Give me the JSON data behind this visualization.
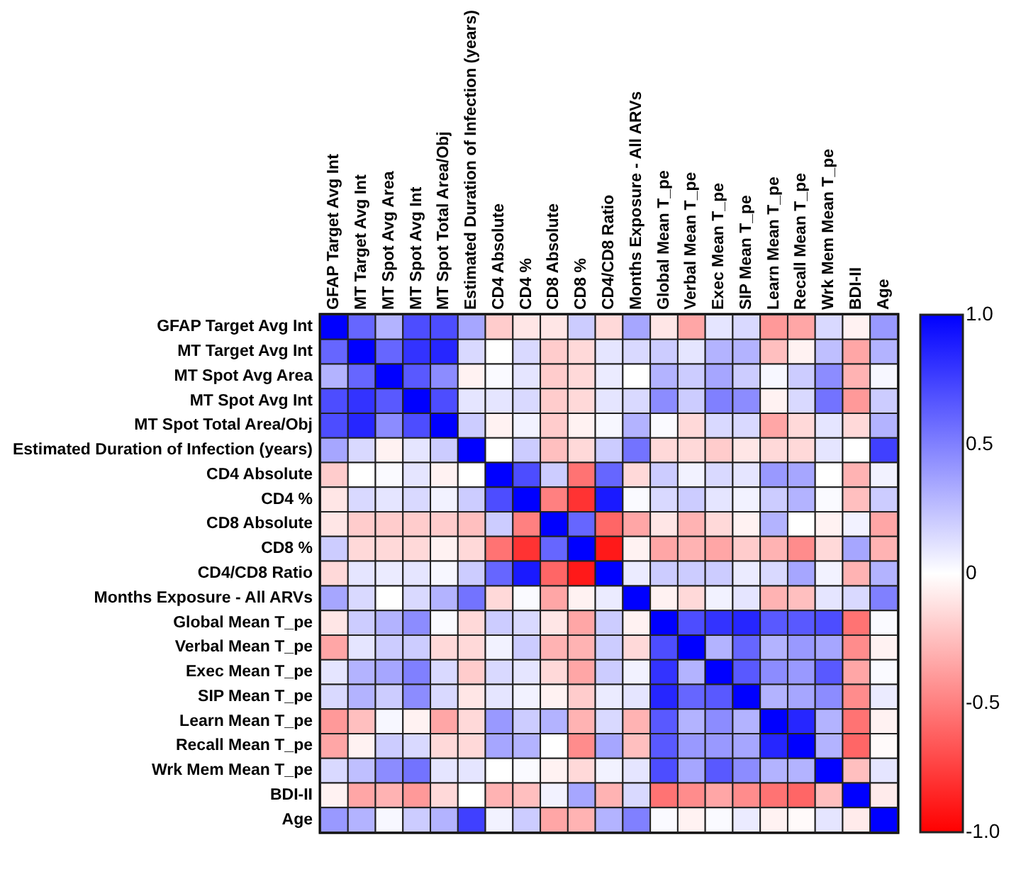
{
  "chart_data": {
    "type": "heatmap",
    "categories": [
      "GFAP Target Avg Int",
      "MT Target Avg Int",
      "MT Spot Avg Area",
      "MT Spot Avg Int",
      "MT Spot Total Area/Obj",
      "Estimated Duration of Infection (years)",
      "CD4 Absolute",
      "CD4 %",
      "CD8 Absolute",
      "CD8 %",
      "CD4/CD8 Ratio",
      "Months Exposure - All ARVs",
      "Global Mean T_pe",
      "Verbal Mean T_pe",
      "Exec Mean T_pe",
      "SIP Mean T_pe",
      "Learn Mean T_pe",
      "Recall Mean T_pe",
      "Wrk Mem Mean T_pe",
      "BDI-II",
      "Age"
    ],
    "y_categories": [
      "GFAP Target Avg Int",
      "MT Target Avg Int",
      "MT Spot Avg Area",
      "MT Spot Avg Int",
      "MT Spot Total Area/Obj",
      "Estimated Duration of Infection (years)",
      "CD4 Absolute",
      "CD4 %",
      "CD8 Absolute",
      "CD8 %",
      "CD4/CD8 Ratio",
      "Months Exposure - All ARVs",
      "Global Mean T_pe",
      "Verbal Mean T_pe",
      "Exec Mean T_pe",
      "SIP Mean T_pe",
      "Learn Mean T_pe",
      "Recall Mean T_pe",
      "Wrk Mem Mean T_pe",
      "BDI-II",
      "Age"
    ],
    "cells": [
      [
        1,
        0.6,
        0.3,
        0.7,
        0.7,
        0.35,
        -0.2,
        -0.1,
        -0.1,
        0.2,
        -0.15,
        0.35,
        -0.1,
        -0.35,
        0.1,
        0.15,
        -0.4,
        -0.35,
        0.15,
        -0.05,
        0.4
      ],
      [
        0.6,
        1,
        0.6,
        0.8,
        0.85,
        0.15,
        0,
        0.15,
        -0.2,
        -0.15,
        0.1,
        0.15,
        0.2,
        0.1,
        0.3,
        0.3,
        -0.25,
        -0.05,
        0.25,
        -0.35,
        0.3
      ],
      [
        0.3,
        0.6,
        1,
        0.65,
        0.45,
        -0.05,
        0.02,
        0.1,
        -0.2,
        -0.15,
        0.08,
        0,
        0.3,
        0.2,
        0.35,
        0.2,
        0.03,
        0.2,
        0.45,
        -0.3,
        0.03
      ],
      [
        0.7,
        0.8,
        0.65,
        1,
        0.7,
        0.1,
        0.1,
        0.15,
        -0.2,
        -0.15,
        0.1,
        0.15,
        0.45,
        0.2,
        0.5,
        0.45,
        -0.05,
        0.15,
        0.55,
        -0.4,
        0.2
      ],
      [
        0.7,
        0.85,
        0.45,
        0.7,
        1,
        0.2,
        -0.05,
        0.05,
        -0.2,
        -0.05,
        0.03,
        0.3,
        0.02,
        -0.15,
        0.15,
        0.15,
        -0.35,
        -0.15,
        0.1,
        -0.15,
        0.3
      ],
      [
        0.35,
        0.15,
        -0.05,
        0.1,
        0.2,
        1,
        0,
        0.2,
        -0.25,
        -0.15,
        0.2,
        0.55,
        -0.15,
        -0.15,
        -0.2,
        -0.1,
        -0.15,
        -0.15,
        0.1,
        0,
        0.75
      ],
      [
        -0.2,
        0,
        0.02,
        0.1,
        -0.05,
        0,
        1,
        0.7,
        0.2,
        -0.55,
        0.6,
        -0.15,
        0.2,
        0.05,
        0.15,
        0.1,
        0.4,
        0.35,
        0,
        -0.3,
        0.05
      ],
      [
        -0.1,
        0.15,
        0.1,
        0.15,
        0.05,
        0.2,
        0.7,
        1,
        -0.5,
        -0.8,
        0.9,
        0.02,
        0.15,
        0.2,
        0.1,
        0.05,
        0.2,
        0.3,
        0.02,
        -0.25,
        0.2
      ],
      [
        -0.1,
        -0.2,
        -0.2,
        -0.2,
        -0.2,
        -0.25,
        0.2,
        -0.5,
        1,
        0.6,
        -0.6,
        -0.35,
        -0.1,
        -0.3,
        -0.15,
        -0.05,
        0.3,
        0,
        -0.05,
        0.05,
        -0.35
      ],
      [
        0.2,
        -0.15,
        -0.15,
        -0.15,
        -0.05,
        -0.15,
        -0.55,
        -0.8,
        0.6,
        1,
        -0.9,
        -0.05,
        -0.35,
        -0.3,
        -0.35,
        -0.2,
        -0.3,
        -0.45,
        -0.15,
        0.35,
        -0.3
      ],
      [
        -0.15,
        0.1,
        0.08,
        0.1,
        0.03,
        0.2,
        0.6,
        0.9,
        -0.6,
        -0.9,
        1,
        0.08,
        0.2,
        0.2,
        0.2,
        0.08,
        0.15,
        0.35,
        0.05,
        -0.3,
        0.3
      ],
      [
        0.35,
        0.15,
        0,
        0.15,
        0.3,
        0.55,
        -0.15,
        0.02,
        -0.35,
        -0.05,
        0.08,
        1,
        -0.05,
        -0.15,
        0.05,
        0.1,
        -0.3,
        -0.25,
        0.1,
        0.15,
        0.5
      ],
      [
        -0.1,
        0.2,
        0.3,
        0.45,
        0.02,
        -0.15,
        0.2,
        0.15,
        -0.1,
        -0.35,
        0.2,
        -0.05,
        1,
        0.7,
        0.8,
        0.85,
        0.65,
        0.65,
        0.7,
        -0.55,
        0.02
      ],
      [
        -0.35,
        0.1,
        0.2,
        0.2,
        -0.15,
        -0.15,
        0.05,
        0.2,
        -0.3,
        -0.3,
        0.2,
        -0.15,
        0.7,
        1,
        0.3,
        0.6,
        0.3,
        0.4,
        0.35,
        -0.45,
        -0.05
      ],
      [
        0.1,
        0.3,
        0.35,
        0.5,
        0.15,
        -0.2,
        0.15,
        0.1,
        -0.15,
        -0.35,
        0.2,
        0.05,
        0.8,
        0.3,
        1,
        0.65,
        0.45,
        0.4,
        0.65,
        -0.35,
        0.02
      ],
      [
        0.15,
        0.3,
        0.2,
        0.45,
        0.15,
        -0.1,
        0.1,
        0.05,
        -0.05,
        -0.2,
        0.08,
        0.1,
        0.85,
        0.6,
        0.65,
        1,
        0.3,
        0.35,
        0.45,
        -0.45,
        0.08
      ],
      [
        -0.4,
        -0.25,
        0.03,
        -0.05,
        -0.35,
        -0.15,
        0.4,
        0.2,
        0.3,
        -0.3,
        0.15,
        -0.3,
        0.65,
        0.3,
        0.45,
        0.3,
        1,
        0.85,
        0.3,
        -0.55,
        -0.05
      ],
      [
        -0.35,
        -0.05,
        0.2,
        0.15,
        -0.15,
        -0.15,
        0.35,
        0.3,
        0,
        -0.45,
        0.35,
        -0.25,
        0.65,
        0.4,
        0.4,
        0.35,
        0.85,
        1,
        0.3,
        -0.6,
        -0.02
      ],
      [
        0.15,
        0.25,
        0.45,
        0.55,
        0.1,
        0.1,
        0,
        0.02,
        -0.05,
        -0.15,
        0.05,
        0.1,
        0.7,
        0.35,
        0.65,
        0.45,
        0.3,
        0.3,
        1,
        -0.25,
        0.1
      ],
      [
        -0.05,
        -0.35,
        -0.3,
        -0.4,
        -0.15,
        0,
        -0.3,
        -0.25,
        0.05,
        0.35,
        -0.3,
        0.15,
        -0.55,
        -0.45,
        -0.35,
        -0.45,
        -0.55,
        -0.6,
        -0.25,
        1,
        -0.08
      ],
      [
        0.4,
        0.3,
        0.03,
        0.2,
        0.3,
        0.75,
        0.05,
        0.2,
        -0.35,
        -0.3,
        0.3,
        0.5,
        0.02,
        -0.05,
        0.02,
        0.08,
        -0.05,
        -0.02,
        0.1,
        -0.08,
        1
      ]
    ],
    "clim": [
      -1.0,
      1.0
    ],
    "cticks": [
      {
        "value": -1.0,
        "label": "-1.0"
      },
      {
        "value": -0.5,
        "label": "-0.5"
      },
      0,
      {
        "value": 0.5,
        "label": "0.5"
      },
      {
        "value": 1.0,
        "label": "1.0"
      }
    ]
  }
}
